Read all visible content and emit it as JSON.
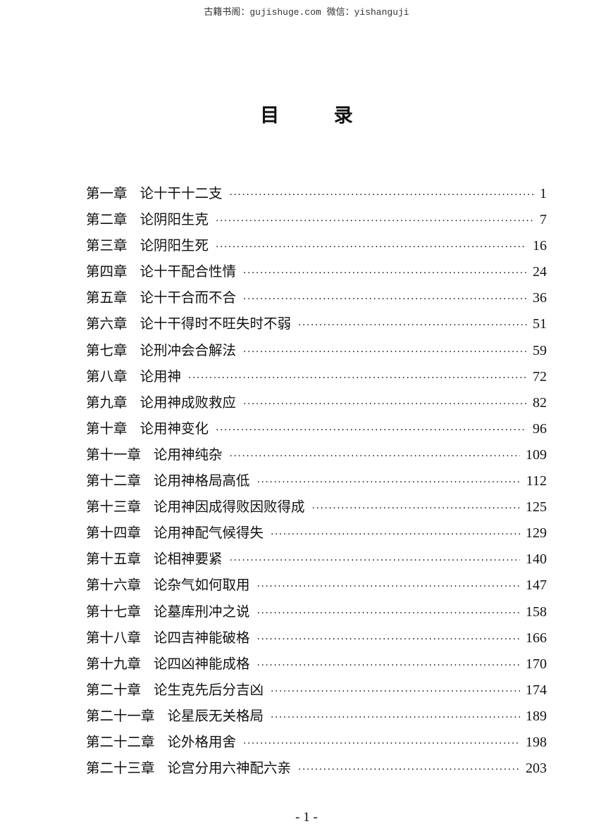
{
  "watermark": "古籍书阁：gujishuge.com 微信：yishanguji",
  "title": "目  录",
  "toc": [
    {
      "chapter": "第一章",
      "title": "论十干十二支",
      "page": "1"
    },
    {
      "chapter": "第二章",
      "title": "论阴阳生克",
      "page": "7"
    },
    {
      "chapter": "第三章",
      "title": "论阴阳生死",
      "page": "16"
    },
    {
      "chapter": "第四章",
      "title": "论十干配合性情",
      "page": "24"
    },
    {
      "chapter": "第五章",
      "title": "论十干合而不合",
      "page": "36"
    },
    {
      "chapter": "第六章",
      "title": "论十干得时不旺失时不弱",
      "page": "51"
    },
    {
      "chapter": "第七章",
      "title": "论刑冲会合解法",
      "page": "59"
    },
    {
      "chapter": "第八章",
      "title": "论用神",
      "page": "72"
    },
    {
      "chapter": "第九章",
      "title": "论用神成败救应",
      "page": "82"
    },
    {
      "chapter": "第十章",
      "title": "论用神变化",
      "page": "96"
    },
    {
      "chapter": "第十一章",
      "title": "论用神纯杂",
      "page": "109"
    },
    {
      "chapter": "第十二章",
      "title": "论用神格局高低",
      "page": "112"
    },
    {
      "chapter": "第十三章",
      "title": "论用神因成得败因败得成",
      "page": "125"
    },
    {
      "chapter": "第十四章",
      "title": "论用神配气候得失",
      "page": "129"
    },
    {
      "chapter": "第十五章",
      "title": "论相神要紧",
      "page": "140"
    },
    {
      "chapter": "第十六章",
      "title": "论杂气如何取用",
      "page": "147"
    },
    {
      "chapter": "第十七章",
      "title": "论墓库刑冲之说",
      "page": "158"
    },
    {
      "chapter": "第十八章",
      "title": "论四吉神能破格",
      "page": "166"
    },
    {
      "chapter": "第十九章",
      "title": "论四凶神能成格",
      "page": "170"
    },
    {
      "chapter": "第二十章",
      "title": "论生克先后分吉凶",
      "page": "174"
    },
    {
      "chapter": "第二十一章",
      "title": "论星辰无关格局",
      "page": "189"
    },
    {
      "chapter": "第二十二章",
      "title": "论外格用舍",
      "page": "198"
    },
    {
      "chapter": "第二十三章",
      "title": "论宫分用六神配六亲",
      "page": "203"
    }
  ],
  "footer": "- 1 -"
}
